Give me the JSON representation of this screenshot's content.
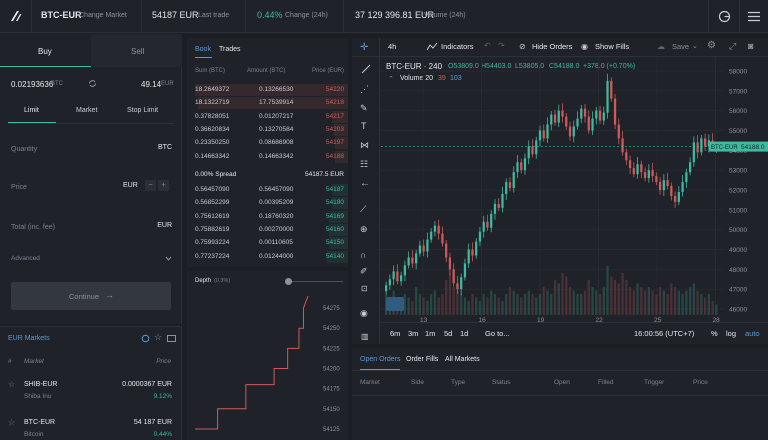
{
  "topbar": {
    "pair": "BTC-EUR",
    "change_market": "Change Market",
    "last_price": "54187 EUR",
    "last_trade_label": "Last trade",
    "change_pct": "0.44%",
    "change_label": "Change (24h)",
    "volume": "37 129 396.81 EUR",
    "volume_label": "Volume (24h)"
  },
  "trade": {
    "buy_tab": "Buy",
    "sell_tab": "Sell",
    "balance_btc": "0.02193636",
    "balance_btc_unit": "BTC",
    "balance_eur": "49.14",
    "balance_eur_unit": "EUR",
    "type_limit": "Limit",
    "type_market": "Market",
    "type_stop": "Stop Limit",
    "quantity_label": "Quantity",
    "quantity_unit": "BTC",
    "price_label": "Price",
    "price_unit": "EUR",
    "total_label": "Total (inc. fee)",
    "total_unit": "EUR",
    "advanced_label": "Advanced",
    "continue_label": "Continue"
  },
  "markets": {
    "title": "EUR Markets",
    "col_num": "#",
    "col_market": "Market",
    "col_price": "Price",
    "rows": [
      {
        "pair": "SHIB-EUR",
        "name": "Shiba Inu",
        "price": "0.0000367 EUR",
        "change": "9.12%"
      },
      {
        "pair": "BTC-EUR",
        "name": "Bitcoin",
        "price": "54 187 EUR",
        "change": "0.44%"
      }
    ]
  },
  "orderbook": {
    "tab_book": "Book",
    "tab_trades": "Trades",
    "col_sum": "Sum (BTC)",
    "col_amount": "Amount (BTC)",
    "col_price": "Price (EUR)",
    "asks": [
      {
        "sum": "18.2649372",
        "amount": "0.13266530",
        "price": "54220",
        "depth": 0.95
      },
      {
        "sum": "18.1322719",
        "amount": "17.7539914",
        "price": "54218",
        "depth": 0.93
      },
      {
        "sum": "0.37828051",
        "amount": "0.01207217",
        "price": "54217",
        "depth": 0.1
      },
      {
        "sum": "0.36620834",
        "amount": "0.13270584",
        "price": "54203",
        "depth": 0.09
      },
      {
        "sum": "0.23350250",
        "amount": "0.08686908",
        "price": "54197",
        "depth": 0.07
      },
      {
        "sum": "0.14663342",
        "amount": "0.14663342",
        "price": "54188",
        "depth": 0.05
      }
    ],
    "spread_pct": "0.00% Spread",
    "spread_price": "54187.5 EUR",
    "bids": [
      {
        "sum": "0.56457090",
        "amount": "0.56457090",
        "price": "54187",
        "depth": 0.1
      },
      {
        "sum": "0.56852299",
        "amount": "0.00395209",
        "price": "54180",
        "depth": 0.1
      },
      {
        "sum": "0.75612619",
        "amount": "0.18760320",
        "price": "54169",
        "depth": 0.12
      },
      {
        "sum": "0.75882619",
        "amount": "0.00270000",
        "price": "54160",
        "depth": 0.12
      },
      {
        "sum": "0.75993224",
        "amount": "0.00110605",
        "price": "54150",
        "depth": 0.12
      },
      {
        "sum": "0.77237224",
        "amount": "0.01244000",
        "price": "54140",
        "depth": 0.13
      }
    ],
    "depth_title": "Depth",
    "depth_pct": "(0.3%)",
    "depth_ticks": [
      "54275",
      "54250",
      "54225",
      "54200",
      "54175",
      "54150",
      "54125"
    ]
  },
  "chart_toolbar": {
    "interval": "4h",
    "indicators": "Indicators",
    "hide_orders": "Hide Orders",
    "show_fills": "Show Fills",
    "save": "Save"
  },
  "chart_header": {
    "symbol": "BTC-EUR · 240",
    "open": "O53809.0",
    "high": "H54403.0",
    "low": "L53805.0",
    "close": "C54188.0",
    "change": "+378.0 (+0.70%)",
    "volume_label": "Volume 20",
    "vol_a": "39",
    "vol_b": "103"
  },
  "chart_footer": {
    "ranges": [
      "6m",
      "3m",
      "1m",
      "5d",
      "1d"
    ],
    "goto": "Go to...",
    "time": "16:00:56 (UTC+7)",
    "pct": "%",
    "log": "log",
    "auto": "auto"
  },
  "orders": {
    "tabs": [
      "Open Orders",
      "Order Fills",
      "All Markets"
    ],
    "columns": [
      "Market",
      "Side",
      "Type",
      "Status",
      "Open",
      "Filled",
      "Trigger",
      "Price"
    ]
  },
  "chart_data": {
    "type": "candlestick",
    "symbol": "BTC-EUR",
    "interval": "240",
    "x_ticks": [
      "13",
      "16",
      "19",
      "22",
      "25",
      "28"
    ],
    "y_ticks": [
      58000,
      57000,
      56000,
      55000,
      54000,
      53000,
      52000,
      51000,
      50000,
      49000,
      48000,
      47000,
      46000
    ],
    "y_range": [
      45700,
      58300
    ],
    "last_price_label": "BTC-EUR",
    "last_price": "54188.0",
    "closes": [
      47200,
      47500,
      47900,
      47400,
      47700,
      48200,
      48600,
      48300,
      48800,
      49200,
      48900,
      49500,
      49900,
      50200,
      49800,
      49300,
      48600,
      48000,
      47300,
      47000,
      47600,
      48300,
      49000,
      48700,
      49400,
      49900,
      50400,
      50100,
      50800,
      51300,
      51100,
      51800,
      52400,
      52100,
      52900,
      53400,
      53000,
      53600,
      54200,
      53800,
      54500,
      55000,
      54600,
      55300,
      55800,
      55400,
      56000,
      55700,
      55200,
      54700,
      55200,
      55600,
      56100,
      55700,
      55000,
      55600,
      56000,
      55500,
      55900,
      57500,
      56600,
      55300,
      54600,
      53900,
      53500,
      53100,
      52800,
      53300,
      52900,
      52600,
      53000,
      52700,
      52400,
      52000,
      52500,
      52200,
      51700,
      51400,
      51900,
      52400,
      52900,
      53400,
      54400,
      53900,
      54600,
      54200,
      54500,
      54100,
      54188
    ],
    "volume_scale": [
      0.3,
      0.2,
      0.35,
      0.25,
      0.2,
      0.3,
      0.25,
      0.2,
      0.4,
      0.3,
      0.25,
      0.2,
      0.3,
      0.35,
      0.25,
      0.3,
      0.5,
      0.6,
      0.4,
      0.35,
      0.3,
      0.25,
      0.2,
      0.3,
      0.25,
      0.2,
      0.3,
      0.25,
      0.35,
      0.3,
      0.25,
      0.2,
      0.3,
      0.4,
      0.35,
      0.3,
      0.25,
      0.3,
      0.35,
      0.3,
      0.25,
      0.3,
      0.4,
      0.35,
      0.3,
      0.5,
      0.45,
      0.6,
      0.55,
      0.4,
      0.35,
      0.3,
      0.3,
      0.35,
      0.5,
      0.4,
      0.35,
      0.3,
      0.4,
      0.7,
      0.55,
      0.5,
      0.45,
      0.6,
      0.5,
      0.4,
      0.35,
      0.45,
      0.4,
      0.35,
      0.4,
      0.35,
      0.3,
      0.4,
      0.35,
      0.3,
      0.45,
      0.4,
      0.35,
      0.3,
      0.35,
      0.4,
      0.45,
      0.35,
      0.3,
      0.25,
      0.3,
      0.2,
      0.15
    ],
    "colors": {
      "up": "#3fb9a0",
      "down": "#d05a5a",
      "last": "#3fb9a0"
    }
  },
  "depth_data": {
    "type": "line",
    "ylim": [
      54115,
      54290
    ],
    "points": [
      [
        0.0,
        54125
      ],
      [
        0.2,
        54125
      ],
      [
        0.2,
        54150
      ],
      [
        0.45,
        54150
      ],
      [
        0.45,
        54180
      ],
      [
        0.7,
        54180
      ],
      [
        0.7,
        54200
      ],
      [
        0.82,
        54200
      ],
      [
        0.82,
        54225
      ],
      [
        0.92,
        54225
      ],
      [
        0.92,
        54250
      ],
      [
        0.96,
        54250
      ],
      [
        0.96,
        54275
      ],
      [
        1.0,
        54290
      ]
    ],
    "color": "#d05a5a"
  }
}
